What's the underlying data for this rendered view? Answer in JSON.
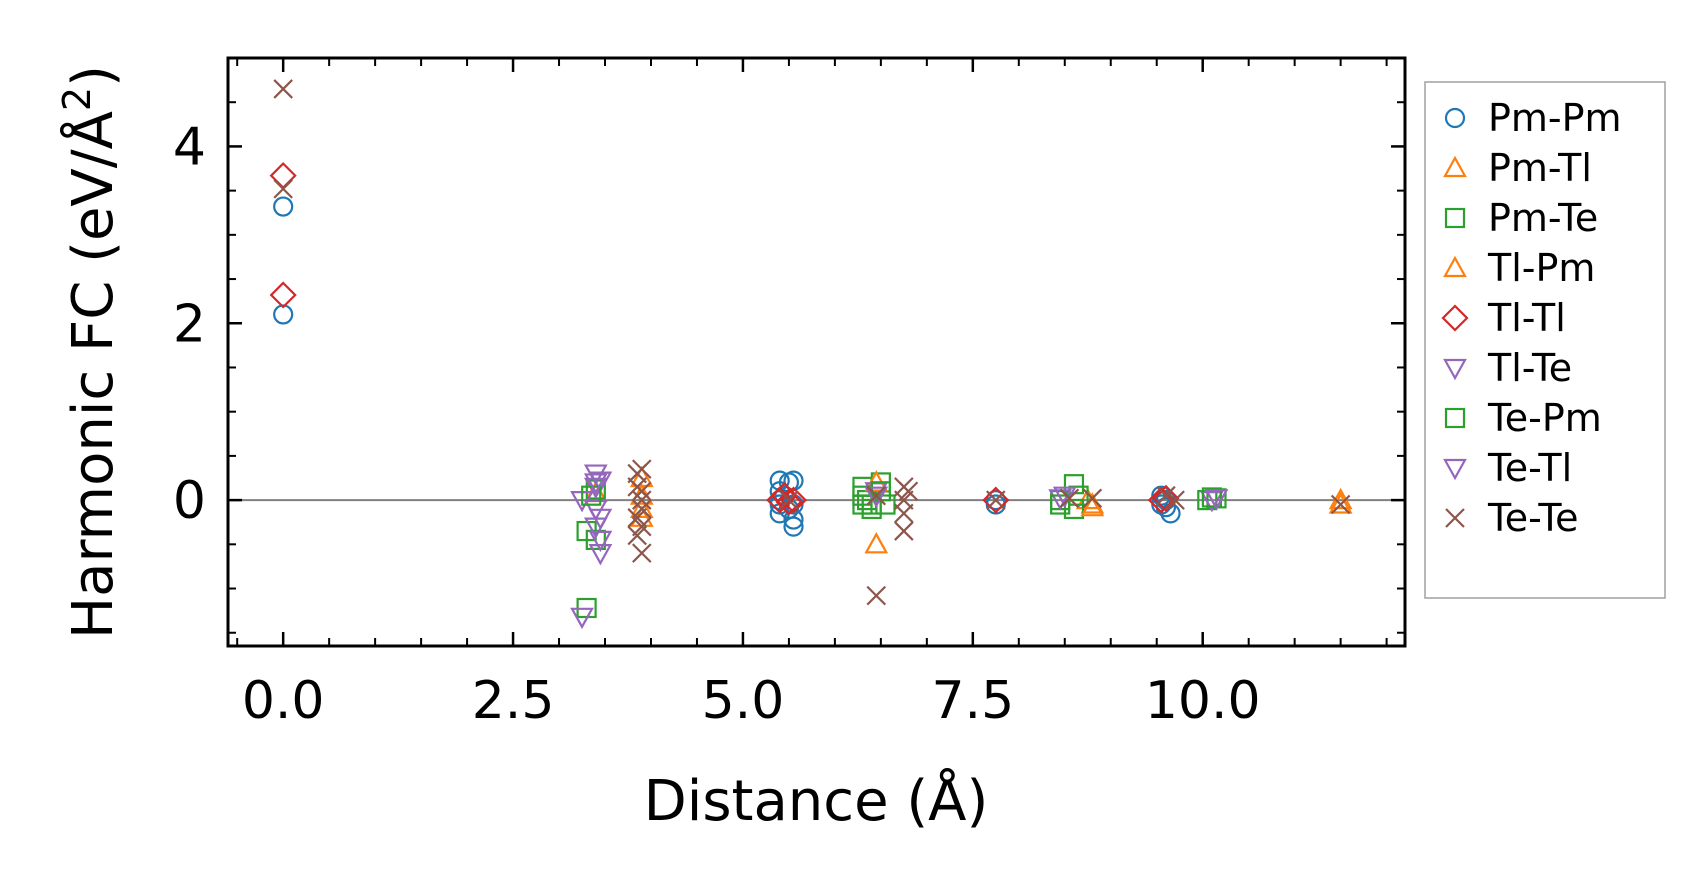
{
  "chart_data": {
    "type": "scatter",
    "xlabel": "Distance (Å)",
    "ylabel_main": "Harmonic FC (eV/Å",
    "ylabel_sup": "2",
    "ylabel_close": ")",
    "xlim": [
      -0.6,
      12.2
    ],
    "ylim": [
      -1.65,
      5.0
    ],
    "xticks": [
      0.0,
      2.5,
      5.0,
      7.5,
      10.0
    ],
    "xtick_labels": [
      "0.0",
      "2.5",
      "5.0",
      "7.5",
      "10.0"
    ],
    "yticks": [
      0,
      2,
      4
    ],
    "ytick_labels": [
      "0",
      "2",
      "4"
    ],
    "zero_line": 0,
    "legend_position": "right",
    "series": [
      {
        "name": "Pm-Pm",
        "marker": "circle",
        "color": "#1f77b4",
        "x": [
          0.0,
          0.0,
          5.4,
          5.4,
          5.4,
          5.4,
          5.4,
          5.45,
          5.5,
          5.5,
          5.55,
          5.55,
          5.55,
          5.55,
          7.75,
          7.75,
          9.55,
          9.55,
          9.6,
          9.6,
          9.65
        ],
        "y": [
          3.32,
          2.1,
          0.22,
          0.1,
          -0.05,
          -0.15,
          0.0,
          0.05,
          0.2,
          -0.1,
          0.22,
          -0.05,
          -0.22,
          -0.3,
          0.0,
          -0.05,
          0.05,
          -0.05,
          0.0,
          -0.08,
          -0.15
        ]
      },
      {
        "name": "Pm-Tl",
        "marker": "triangle-up",
        "color": "#ff7f0e",
        "x": [
          3.4,
          3.9,
          3.9,
          6.45,
          8.75,
          8.8,
          11.5
        ],
        "y": [
          0.08,
          0.05,
          -0.1,
          -0.5,
          0.0,
          -0.05,
          0.0
        ]
      },
      {
        "name": "Pm-Te",
        "marker": "square",
        "color": "#2ca02c",
        "x": [
          3.3,
          3.3,
          3.4,
          3.4,
          6.3,
          6.3,
          6.35,
          6.4,
          6.5,
          6.55,
          8.45,
          8.6,
          8.6,
          8.65,
          10.05,
          10.15
        ],
        "y": [
          -1.22,
          -0.35,
          0.12,
          -0.45,
          0.15,
          -0.05,
          0.0,
          -0.1,
          0.2,
          -0.05,
          0.0,
          0.18,
          -0.1,
          0.05,
          0.0,
          0.02
        ]
      },
      {
        "name": "Tl-Pm",
        "marker": "triangle-up",
        "color": "#ff7f0e",
        "x": [
          3.9,
          3.9,
          6.45,
          8.8,
          11.5
        ],
        "y": [
          0.25,
          -0.2,
          0.2,
          -0.08,
          -0.05
        ]
      },
      {
        "name": "Tl-Tl",
        "marker": "diamond",
        "color": "#d62728",
        "x": [
          0.0,
          0.0,
          5.4,
          5.45,
          5.5,
          5.55,
          7.75,
          9.55,
          9.6
        ],
        "y": [
          3.67,
          2.32,
          0.0,
          0.05,
          -0.02,
          0.0,
          0.0,
          0.0,
          0.02
        ]
      },
      {
        "name": "Tl-Te",
        "marker": "triangle-down",
        "color": "#9467bd",
        "x": [
          3.25,
          3.25,
          3.4,
          3.4,
          3.4,
          3.4,
          3.45,
          3.45,
          3.45,
          6.45,
          8.45,
          10.1
        ],
        "y": [
          -1.32,
          0.0,
          0.3,
          0.15,
          -0.1,
          -0.3,
          0.22,
          -0.45,
          -0.6,
          0.1,
          0.02,
          0.0
        ]
      },
      {
        "name": "Te-Pm",
        "marker": "square",
        "color": "#2ca02c",
        "x": [
          3.35,
          6.3,
          6.4,
          6.5,
          8.45,
          10.1
        ],
        "y": [
          0.05,
          0.05,
          -0.05,
          0.1,
          -0.05,
          0.03
        ]
      },
      {
        "name": "Te-Tl",
        "marker": "triangle-down",
        "color": "#9467bd",
        "x": [
          3.4,
          3.45,
          6.45,
          8.5,
          10.15
        ],
        "y": [
          0.2,
          -0.2,
          0.05,
          0.05,
          0.02
        ]
      },
      {
        "name": "Te-Te",
        "marker": "x",
        "color": "#8c564b",
        "x": [
          0.0,
          0.0,
          3.85,
          3.85,
          3.85,
          3.85,
          3.9,
          3.9,
          3.9,
          3.9,
          3.9,
          3.9,
          5.5,
          6.45,
          6.45,
          6.75,
          6.75,
          6.75,
          6.75,
          6.8,
          7.75,
          8.55,
          8.8,
          9.6,
          9.7,
          11.5
        ],
        "y": [
          4.65,
          3.52,
          0.3,
          0.15,
          -0.2,
          -0.4,
          0.35,
          0.1,
          0.0,
          -0.1,
          -0.3,
          -0.6,
          0.0,
          0.05,
          -1.08,
          0.15,
          0.0,
          -0.15,
          -0.35,
          0.1,
          0.0,
          0.02,
          0.02,
          0.05,
          0.0,
          -0.05
        ]
      }
    ]
  }
}
